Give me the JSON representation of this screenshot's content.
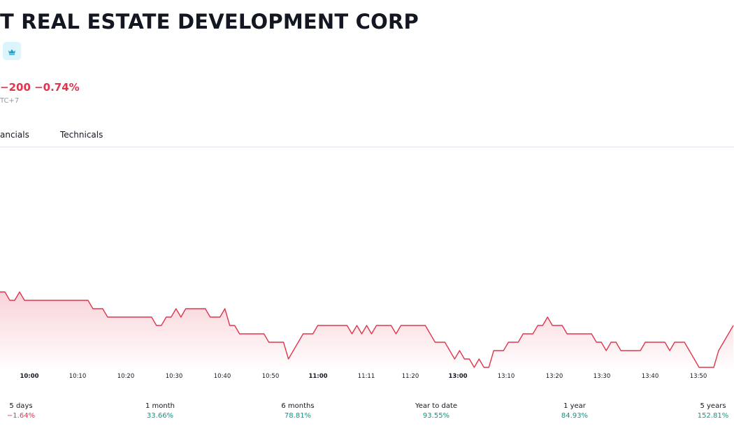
{
  "header": {
    "title": "T REAL ESTATE DEVELOPMENT CORP",
    "badge_icon": "crown-icon",
    "change": "−200 −0.74%",
    "timezone": "TC+7"
  },
  "tabs": [
    {
      "label": "ancials"
    },
    {
      "label": "Technicals"
    }
  ],
  "colors": {
    "negative": "#e0364d",
    "positive": "#089981",
    "line": "#e0364d",
    "badge_bg": "#dcf4fb",
    "badge_icon": "#1aa3c9"
  },
  "chart_data": {
    "type": "area",
    "x_tick_labels": [
      "10:00",
      "10:10",
      "10:20",
      "10:30",
      "10:40",
      "10:50",
      "11:00",
      "11:11",
      "11:20",
      "13:00",
      "13:10",
      "13:20",
      "13:30",
      "13:40",
      "13:50"
    ],
    "bold_ticks": [
      "10:00",
      "11:00",
      "13:00"
    ],
    "line_color": "#e0364d",
    "fill": "gradient red to transparent",
    "series": [
      {
        "values": [
          5,
          5,
          4,
          4,
          5,
          4,
          4,
          4,
          4,
          4,
          4,
          4,
          4,
          4,
          4,
          4,
          4,
          4,
          4,
          3,
          3,
          3,
          2,
          2,
          2,
          2,
          2,
          2,
          2,
          2,
          2,
          2,
          1,
          1,
          2,
          2,
          3,
          2,
          3,
          3,
          3,
          3,
          3,
          2,
          2,
          2,
          3,
          1,
          1,
          0,
          0,
          0,
          0,
          0,
          0,
          -1,
          -1,
          -1,
          -1,
          -3,
          -2,
          -1,
          0,
          0,
          0,
          1,
          1,
          1,
          1,
          1,
          1,
          1,
          0,
          1,
          0,
          1,
          0,
          1,
          1,
          1,
          1,
          0,
          1,
          1,
          1,
          1,
          1,
          1,
          0,
          -1,
          -1,
          -1,
          -2,
          -3,
          -2,
          -3,
          -3,
          -4,
          -3,
          -4,
          -4,
          -2,
          -2,
          -2,
          -1,
          -1,
          -1,
          0,
          0,
          0,
          1,
          1,
          2,
          1,
          1,
          1,
          0,
          0,
          0,
          0,
          0,
          0,
          -1,
          -1,
          -2,
          -1,
          -1,
          -2,
          -2,
          -2,
          -2,
          -2,
          -1,
          -1,
          -1,
          -1,
          -1,
          -2,
          -1,
          -1,
          -1,
          -2,
          -3,
          -4,
          -4,
          -4,
          -4,
          -2,
          -1,
          0,
          1
        ]
      }
    ]
  },
  "performance": [
    {
      "label": "5 days",
      "value": "−1.64%",
      "trend": "negative"
    },
    {
      "label": "1 month",
      "value": "33.66%",
      "trend": "positive"
    },
    {
      "label": "6 months",
      "value": "78.81%",
      "trend": "positive"
    },
    {
      "label": "Year to date",
      "value": "93.55%",
      "trend": "positive"
    },
    {
      "label": "1 year",
      "value": "84.93%",
      "trend": "positive"
    },
    {
      "label": "5 years",
      "value": "152.81%",
      "trend": "positive"
    }
  ]
}
